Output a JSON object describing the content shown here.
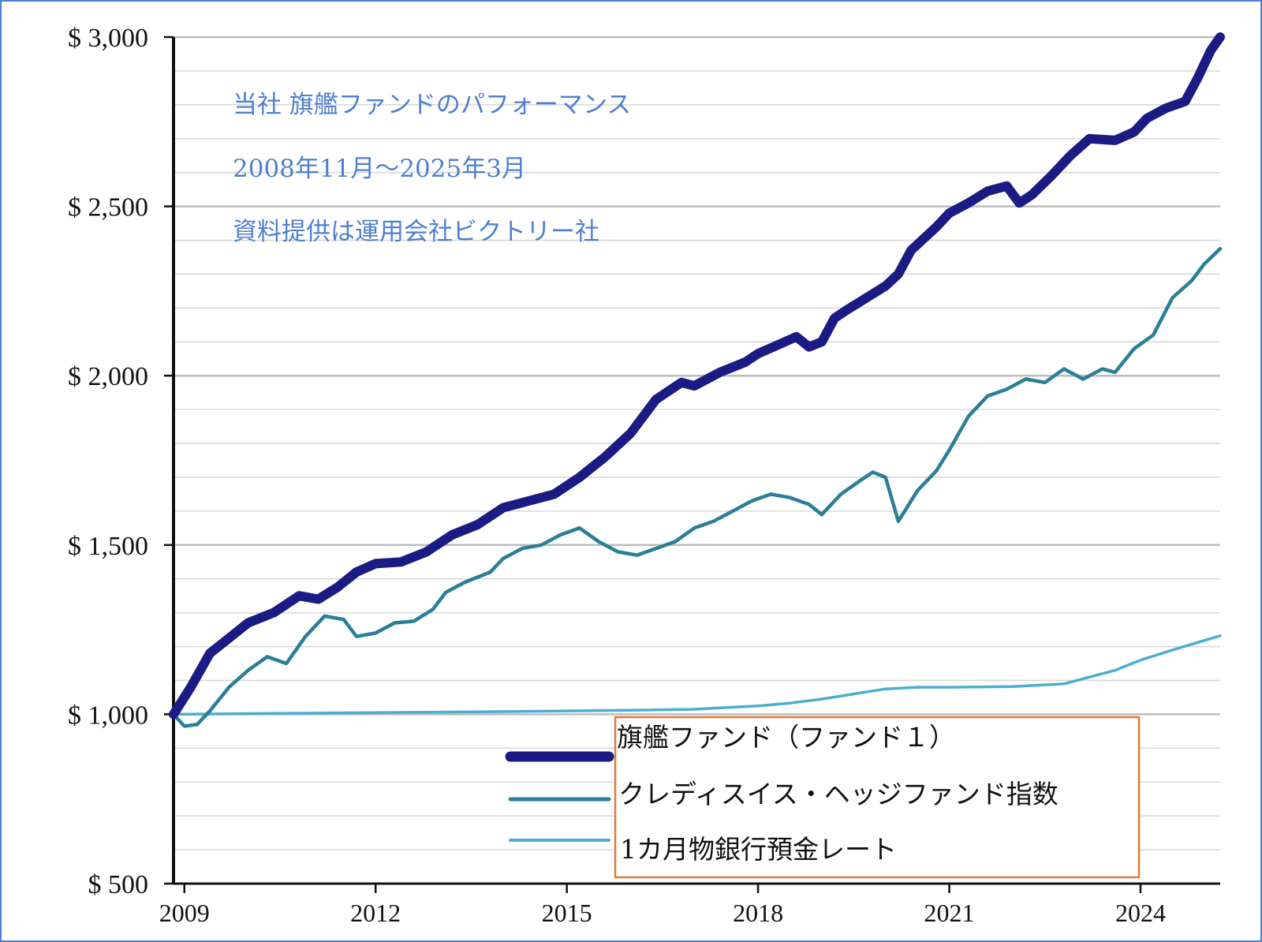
{
  "chart_data": {
    "type": "line",
    "annotations": [
      "当社 旗艦ファンドのパフォーマンス",
      "2008年11月～2025年3月",
      "資料提供は運用会社ビクトリー社"
    ],
    "ylim": [
      500,
      3000
    ],
    "y_ticks": [
      500,
      1000,
      1500,
      2000,
      2500,
      3000
    ],
    "y_tick_labels": [
      "$ 500",
      "$ 1,000",
      "$ 1,500",
      "$ 2,000",
      "$ 2,500",
      "$ 3,000"
    ],
    "x_ticks": [
      2009,
      2012,
      2015,
      2018,
      2021,
      2024
    ],
    "x_tick_labels": [
      "2009",
      "2012",
      "2015",
      "2018",
      "2021",
      "2024"
    ],
    "xlim": [
      2008.83,
      2025.25
    ],
    "grid": true,
    "legend_position": "bottom-center",
    "series": [
      {
        "name": "旗艦ファンド（ファンド１）",
        "color": "#1b1b84",
        "x": [
          2008.83,
          2009.1,
          2009.4,
          2009.6,
          2010.0,
          2010.4,
          2010.8,
          2011.1,
          2011.4,
          2011.7,
          2012.0,
          2012.4,
          2012.8,
          2013.2,
          2013.6,
          2014.0,
          2014.4,
          2014.8,
          2015.2,
          2015.6,
          2016.0,
          2016.4,
          2016.8,
          2017.0,
          2017.4,
          2017.8,
          2018.0,
          2018.3,
          2018.6,
          2018.8,
          2019.0,
          2019.2,
          2019.4,
          2019.7,
          2020.0,
          2020.2,
          2020.4,
          2020.8,
          2021.0,
          2021.3,
          2021.6,
          2021.9,
          2022.1,
          2022.3,
          2022.6,
          2022.9,
          2023.2,
          2023.6,
          2023.9,
          2024.1,
          2024.4,
          2024.7,
          2024.9,
          2025.1,
          2025.25
        ],
        "values": [
          1000,
          1080,
          1180,
          1210,
          1270,
          1300,
          1350,
          1340,
          1375,
          1420,
          1445,
          1450,
          1480,
          1530,
          1560,
          1610,
          1630,
          1650,
          1700,
          1760,
          1830,
          1930,
          1980,
          1970,
          2010,
          2040,
          2065,
          2090,
          2115,
          2085,
          2100,
          2170,
          2195,
          2230,
          2265,
          2300,
          2370,
          2440,
          2480,
          2510,
          2545,
          2560,
          2510,
          2535,
          2590,
          2650,
          2700,
          2695,
          2720,
          2760,
          2790,
          2810,
          2880,
          2960,
          3000
        ]
      },
      {
        "name": "クレディスイス・ヘッジファンド指数",
        "color": "#2a7f96",
        "x": [
          2008.83,
          2009.0,
          2009.2,
          2009.4,
          2009.7,
          2010.0,
          2010.3,
          2010.6,
          2010.9,
          2011.2,
          2011.5,
          2011.7,
          2012.0,
          2012.3,
          2012.6,
          2012.9,
          2013.1,
          2013.4,
          2013.8,
          2014.0,
          2014.3,
          2014.6,
          2014.9,
          2015.2,
          2015.5,
          2015.8,
          2016.1,
          2016.4,
          2016.7,
          2017.0,
          2017.3,
          2017.6,
          2017.9,
          2018.2,
          2018.5,
          2018.8,
          2019.0,
          2019.3,
          2019.6,
          2019.8,
          2020.0,
          2020.2,
          2020.5,
          2020.8,
          2021.0,
          2021.3,
          2021.6,
          2021.9,
          2022.2,
          2022.5,
          2022.8,
          2023.1,
          2023.4,
          2023.6,
          2023.9,
          2024.2,
          2024.5,
          2024.8,
          2025.0,
          2025.25
        ],
        "values": [
          1000,
          965,
          970,
          1010,
          1080,
          1130,
          1170,
          1150,
          1230,
          1290,
          1280,
          1230,
          1240,
          1270,
          1275,
          1310,
          1360,
          1390,
          1420,
          1460,
          1490,
          1500,
          1530,
          1550,
          1510,
          1480,
          1470,
          1490,
          1510,
          1550,
          1570,
          1600,
          1630,
          1650,
          1640,
          1620,
          1590,
          1650,
          1690,
          1715,
          1700,
          1570,
          1660,
          1720,
          1780,
          1880,
          1940,
          1960,
          1990,
          1980,
          2020,
          1990,
          2020,
          2010,
          2080,
          2120,
          2230,
          2280,
          2330,
          2375
        ]
      },
      {
        "name": "1カ月物銀行預金レート",
        "color": "#4baed0",
        "x": [
          2008.83,
          2010.0,
          2012.0,
          2014.0,
          2016.0,
          2017.0,
          2018.0,
          2018.5,
          2019.0,
          2019.5,
          2020.0,
          2020.5,
          2021.0,
          2022.0,
          2022.8,
          2023.2,
          2023.6,
          2024.0,
          2024.5,
          2025.25
        ],
        "values": [
          1000,
          1002,
          1005,
          1008,
          1012,
          1015,
          1025,
          1033,
          1045,
          1060,
          1075,
          1080,
          1080,
          1082,
          1090,
          1110,
          1130,
          1160,
          1190,
          1232
        ]
      }
    ]
  }
}
